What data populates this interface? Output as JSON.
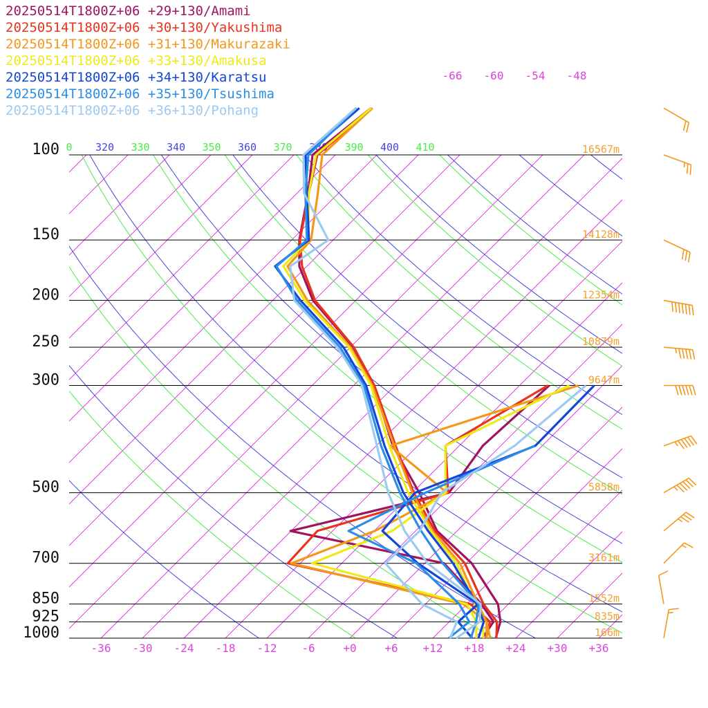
{
  "legend": [
    {
      "label": "20250514T1800Z+06 +29+130/Amami",
      "color": "#a0145f"
    },
    {
      "label": "20250514T1800Z+06 +30+130/Yakushima",
      "color": "#e8331e"
    },
    {
      "label": "20250514T1800Z+06 +31+130/Makurazaki",
      "color": "#f5971b"
    },
    {
      "label": "20250514T1800Z+06 +33+130/Amakusa",
      "color": "#eeea1a"
    },
    {
      "label": "20250514T1800Z+06 +34+130/Karatsu",
      "color": "#1346d8"
    },
    {
      "label": "20250514T1800Z+06 +35+130/Tsushima",
      "color": "#2c8de6"
    },
    {
      "label": "20250514T1800Z+06 +36+130/Pohang",
      "color": "#9ccaf2"
    }
  ],
  "chart_data": {
    "type": "line",
    "title": "",
    "pressure_levels": [
      {
        "p": 100,
        "height": "16567m"
      },
      {
        "p": 150,
        "height": "14128m"
      },
      {
        "p": 200,
        "height": "12354m"
      },
      {
        "p": 250,
        "height": "10879m"
      },
      {
        "p": 300,
        "height": "9647m"
      },
      {
        "p": 500,
        "height": "5858m"
      },
      {
        "p": 700,
        "height": "3161m"
      },
      {
        "p": 850,
        "height": "1552m"
      },
      {
        "p": 925,
        "height": "835m"
      },
      {
        "p": 1000,
        "height": "166m"
      }
    ],
    "temperature_ticks": [
      "-36",
      "-30",
      "-24",
      "-18",
      "-12",
      "-6",
      "+0",
      "+6",
      "+12",
      "+18",
      "+24",
      "+30",
      "+36"
    ],
    "temperature_tick_values": [
      -36,
      -30,
      -24,
      -18,
      -12,
      -6,
      0,
      6,
      12,
      18,
      24,
      30,
      36
    ],
    "isotherm_top_labels": [
      "-66",
      "-60",
      "-54",
      "-48"
    ],
    "isotherm_top_values": [
      -66,
      -60,
      -54,
      -48
    ],
    "theta_e_labels": [
      "0",
      "320",
      "330",
      "340",
      "350",
      "360",
      "370",
      "380",
      "390",
      "400",
      "410"
    ],
    "theta_e_colors": [
      "#44ee44",
      "#4444dd",
      "#44ee44",
      "#4444dd",
      "#44ee44",
      "#4444dd",
      "#44ee44",
      "#4444dd",
      "#44ee44",
      "#4444dd",
      "#44ee44"
    ],
    "colors": {
      "isobar": "#000000",
      "isotherm": "#dd22dd",
      "theta_dry": "#4444dd",
      "theta_moist": "#44ee44",
      "height_label": "#f5a030",
      "tick_label": "#dd44dd",
      "wind_barb": "#f5971b"
    },
    "series": [
      {
        "name": "20250514T1800Z+06 +29+130/Amami",
        "color": "#a0145f",
        "temperature": [
          [
            1000,
            21.1
          ],
          [
            925,
            19.4
          ],
          [
            850,
            16.5
          ],
          [
            700,
            6.8
          ],
          [
            600,
            -2.9
          ],
          [
            500,
            -11.0
          ],
          [
            400,
            -21.6
          ],
          [
            300,
            -33.1
          ],
          [
            250,
            -41.6
          ],
          [
            200,
            -54.2
          ],
          [
            170,
            -61.1
          ],
          [
            150,
            -64.9
          ],
          [
            120,
            -70.4
          ],
          [
            100,
            -75.3
          ],
          [
            80,
            -73.6
          ]
        ],
        "dewpoint": [
          [
            1000,
            19.2
          ],
          [
            925,
            18.4
          ],
          [
            850,
            14.1
          ],
          [
            700,
            2.8
          ],
          [
            600,
            -24.1
          ],
          [
            500,
            -6.7
          ],
          [
            400,
            -8.6
          ],
          [
            300,
            -7.7
          ]
        ]
      },
      {
        "name": "20250514T1800Z+06 +30+130/Yakushima",
        "color": "#e8331e",
        "temperature": [
          [
            1000,
            21.2
          ],
          [
            925,
            18.9
          ],
          [
            850,
            14.4
          ],
          [
            700,
            5.8
          ],
          [
            600,
            -3.2
          ],
          [
            500,
            -11.8
          ],
          [
            400,
            -21.2
          ],
          [
            300,
            -33.0
          ],
          [
            250,
            -41.5
          ],
          [
            200,
            -53.9
          ],
          [
            170,
            -60.7
          ],
          [
            150,
            -64.8
          ],
          [
            120,
            -70.3
          ],
          [
            100,
            -74.6
          ],
          [
            80,
            -73.4
          ]
        ],
        "dewpoint": [
          [
            1000,
            19.7
          ],
          [
            925,
            17.9
          ],
          [
            850,
            12.5
          ],
          [
            700,
            -19.8
          ],
          [
            600,
            -20.2
          ],
          [
            500,
            -6.8
          ],
          [
            400,
            -14.0
          ],
          [
            300,
            -7.9
          ]
        ]
      },
      {
        "name": "20250514T1800Z+06 +31+130/Makurazaki",
        "color": "#f5971b",
        "temperature": [
          [
            1000,
            20.3
          ],
          [
            925,
            17.4
          ],
          [
            850,
            13.6
          ],
          [
            700,
            5.1
          ],
          [
            600,
            -3.6
          ],
          [
            500,
            -12.0
          ],
          [
            400,
            -21.4
          ],
          [
            300,
            -33.3
          ],
          [
            250,
            -42.0
          ],
          [
            200,
            -55.0
          ],
          [
            170,
            -62.8
          ],
          [
            150,
            -63.2
          ],
          [
            120,
            -69.0
          ],
          [
            100,
            -73.9
          ],
          [
            80,
            -73.4
          ]
        ],
        "dewpoint": [
          [
            1000,
            19.8
          ],
          [
            925,
            17.4
          ],
          [
            850,
            11.5
          ],
          [
            700,
            -19.3
          ],
          [
            600,
            -11.9
          ],
          [
            500,
            -7.0
          ],
          [
            400,
            -22.0
          ],
          [
            300,
            -3.5
          ]
        ]
      },
      {
        "name": "20250514T1800Z+06 +33+130/Amakusa",
        "color": "#eeea1a",
        "temperature": [
          [
            1000,
            19.3
          ],
          [
            925,
            16.9
          ],
          [
            850,
            13.2
          ],
          [
            700,
            4.6
          ],
          [
            600,
            -3.8
          ],
          [
            500,
            -12.6
          ],
          [
            400,
            -22.1
          ],
          [
            300,
            -33.5
          ],
          [
            250,
            -42.2
          ],
          [
            200,
            -55.4
          ],
          [
            170,
            -63.4
          ],
          [
            150,
            -63.6
          ],
          [
            120,
            -70.3
          ],
          [
            100,
            -74.8
          ],
          [
            80,
            -73.6
          ]
        ],
        "dewpoint": [
          [
            1000,
            18.3
          ],
          [
            925,
            15.9
          ],
          [
            850,
            12.0
          ],
          [
            700,
            -16.3
          ],
          [
            600,
            -9.4
          ],
          [
            500,
            -7.2
          ],
          [
            400,
            -14.0
          ],
          [
            300,
            -4.8
          ]
        ]
      },
      {
        "name": "20250514T1800Z+06 +34+130/Karatsu",
        "color": "#1346d8",
        "temperature": [
          [
            1000,
            18.6
          ],
          [
            925,
            17.0
          ],
          [
            850,
            13.4
          ],
          [
            700,
            4.1
          ],
          [
            600,
            -4.2
          ],
          [
            500,
            -13.3
          ],
          [
            400,
            -22.8
          ],
          [
            300,
            -34.2
          ],
          [
            250,
            -43.0
          ],
          [
            200,
            -56.0
          ],
          [
            170,
            -64.6
          ],
          [
            150,
            -63.5
          ],
          [
            120,
            -70.6
          ],
          [
            100,
            -76.3
          ],
          [
            80,
            -75.3
          ]
        ],
        "dewpoint": [
          [
            1000,
            17.7
          ],
          [
            925,
            13.3
          ],
          [
            850,
            13.6
          ],
          [
            700,
            -1.0
          ],
          [
            600,
            -10.8
          ],
          [
            500,
            -11.6
          ],
          [
            400,
            -1.0
          ],
          [
            300,
            -1.2
          ]
        ]
      },
      {
        "name": "20250514T1800Z+06 +35+130/Tsushima",
        "color": "#2c8de6",
        "temperature": [
          [
            1000,
            17.5
          ],
          [
            925,
            15.9
          ],
          [
            850,
            13.7
          ],
          [
            700,
            2.6
          ],
          [
            600,
            -5.2
          ],
          [
            500,
            -13.8
          ],
          [
            400,
            -23.3
          ],
          [
            300,
            -34.5
          ],
          [
            250,
            -43.5
          ],
          [
            200,
            -56.5
          ],
          [
            170,
            -64.4
          ],
          [
            150,
            -63.8
          ],
          [
            120,
            -70.8
          ],
          [
            100,
            -75.9
          ],
          [
            80,
            -75.7
          ]
        ],
        "dewpoint": [
          [
            1000,
            14.3
          ],
          [
            925,
            14.9
          ],
          [
            850,
            10.9
          ],
          [
            700,
            -1.2
          ],
          [
            600,
            -15.7
          ],
          [
            500,
            -10.1
          ],
          [
            400,
            -1.1
          ]
        ]
      },
      {
        "name": "20250514T1800Z+06 +36+130/Pohang",
        "color": "#9ccaf2",
        "temperature": [
          [
            1000,
            15.4
          ],
          [
            925,
            16.4
          ],
          [
            850,
            14.0
          ],
          [
            700,
            0.4
          ],
          [
            600,
            -7.6
          ],
          [
            500,
            -15.5
          ],
          [
            400,
            -23.9
          ],
          [
            300,
            -34.8
          ],
          [
            250,
            -43.9
          ],
          [
            200,
            -56.9
          ],
          [
            170,
            -62.4
          ],
          [
            150,
            -60.7
          ],
          [
            120,
            -71.0
          ],
          [
            100,
            -76.6
          ],
          [
            80,
            -75.8
          ]
        ],
        "dewpoint": [
          [
            1000,
            14.5
          ],
          [
            925,
            13.1
          ],
          [
            850,
            5.5
          ],
          [
            700,
            -5.7
          ],
          [
            600,
            -5.4
          ],
          [
            500,
            -7.8
          ],
          [
            400,
            -4.0
          ],
          [
            300,
            -2.4
          ]
        ]
      }
    ],
    "wind_barbs": [
      {
        "p": 80,
        "dir": 300,
        "speed": 20
      },
      {
        "p": 100,
        "dir": 290,
        "speed": 25
      },
      {
        "p": 150,
        "dir": 295,
        "speed": 30
      },
      {
        "p": 200,
        "dir": 280,
        "speed": 70
      },
      {
        "p": 250,
        "dir": 275,
        "speed": 55
      },
      {
        "p": 300,
        "dir": 270,
        "speed": 60
      },
      {
        "p": 400,
        "dir": 250,
        "speed": 55
      },
      {
        "p": 500,
        "dir": 240,
        "speed": 55
      },
      {
        "p": 600,
        "dir": 230,
        "speed": 35
      },
      {
        "p": 700,
        "dir": 225,
        "speed": 15
      },
      {
        "p": 850,
        "dir": 170,
        "speed": 10
      },
      {
        "p": 1000,
        "dir": 190,
        "speed": 15
      }
    ]
  }
}
